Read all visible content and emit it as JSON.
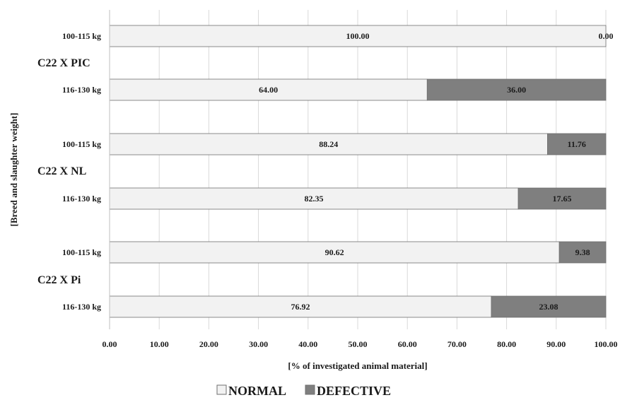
{
  "chart_data": {
    "type": "bar",
    "orientation": "horizontal",
    "stacked": true,
    "xlabel": "[% of investigated animal material]",
    "ylabel": "[Breed and slaughter weight]",
    "xlim": [
      0,
      100
    ],
    "xticks": [
      "0.00",
      "10.00",
      "20.00",
      "30.00",
      "40.00",
      "50.00",
      "60.00",
      "70.00",
      "80.00",
      "90.00",
      "100.00"
    ],
    "grid": true,
    "legend_position": "bottom",
    "groups": [
      {
        "name": "C22 X PIC",
        "categories": [
          "100-115 kg",
          "116-130 kg"
        ]
      },
      {
        "name": "C22 X NL",
        "categories": [
          "100-115 kg",
          "116-130 kg"
        ]
      },
      {
        "name": "C22 X Pi",
        "categories": [
          "100-115 kg",
          "116-130 kg"
        ]
      }
    ],
    "series": [
      {
        "name": "NORMAL",
        "color": "#f2f2f2",
        "values": [
          100.0,
          64.0,
          88.24,
          82.35,
          90.62,
          76.92
        ],
        "labels": [
          "100.00",
          "64.00",
          "88.24",
          "82.35",
          "90.62",
          "76.92"
        ]
      },
      {
        "name": "DEFECTIVE",
        "color": "#7f7f7f",
        "values": [
          0.0,
          36.0,
          11.76,
          17.65,
          9.38,
          23.08
        ],
        "labels": [
          "0.00",
          "36.00",
          "11.76",
          "17.65",
          "9.38",
          "23.08"
        ]
      }
    ]
  }
}
